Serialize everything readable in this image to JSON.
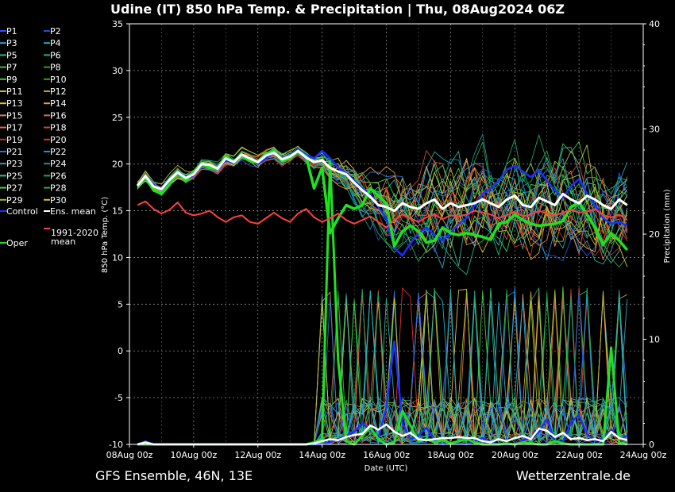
{
  "chart_data": {
    "type": "line",
    "title": "Udine  (IT)  850 hPa Temp. & Precipitation | Thu, 08Aug2024 06Z",
    "xlabel": "Date (UTC)",
    "ylabel": "850 hPa Temp. (°C)",
    "y2label": "Precipitation (mm)",
    "ylim": [
      -10,
      35
    ],
    "y2lim": [
      0,
      40
    ],
    "xlim": [
      0,
      64
    ],
    "yticks": [
      -10,
      -5,
      0,
      5,
      10,
      15,
      20,
      25,
      30,
      35
    ],
    "y2ticks": [
      0,
      10,
      20,
      30,
      40
    ],
    "xticks": [
      {
        "label": "08Aug 00z",
        "pos": 0
      },
      {
        "label": "10Aug 00z",
        "pos": 8
      },
      {
        "label": "12Aug 00z",
        "pos": 16
      },
      {
        "label": "14Aug 00z",
        "pos": 24
      },
      {
        "label": "16Aug 00z",
        "pos": 32
      },
      {
        "label": "18Aug 00z",
        "pos": 40
      },
      {
        "label": "20Aug 00z",
        "pos": 48
      },
      {
        "label": "22Aug 00z",
        "pos": 56
      },
      {
        "label": "24Aug 00z",
        "pos": 64
      }
    ],
    "grid": true,
    "x_start": 1,
    "x_step": 1,
    "members_color": [
      "#3050ff",
      "#2050d0",
      "#2ea8c8",
      "#20b0b0",
      "#30b090",
      "#20b070",
      "#40c040",
      "#30a030",
      "#b0c040",
      "#c0a030",
      "#e0c040",
      "#e0a030",
      "#d08060",
      "#d07040",
      "#e07050",
      "#c05030",
      "#c03030",
      "#e03030",
      "#3070d0",
      "#2090e0",
      "#30a0b0",
      "#2090a0",
      "#30c080",
      "#20a060",
      "#40d040",
      "#20b040",
      "#a0c030",
      "#d0c030"
    ],
    "series": [
      {
        "name": "Control",
        "color": "#1a30ff",
        "width": 2.5,
        "values": [
          17.6,
          18.6,
          17.8,
          17.2,
          18.2,
          19.1,
          18.4,
          18.8,
          19.9,
          19.8,
          19.4,
          20.4,
          20.1,
          20.9,
          20.5,
          20.0,
          20.6,
          21.2,
          20.4,
          20.8,
          21.6,
          21.0,
          20.6,
          21.4,
          20.6,
          19.6,
          19.0,
          18.2,
          17.4,
          16.8,
          15.4,
          14.2,
          11.0,
          10.2,
          11.5,
          12.6,
          13.2,
          12.4,
          11.8,
          12.6,
          13.6,
          14.2,
          15.6,
          16.8,
          17.4,
          18.2,
          19.4,
          19.8,
          19.2,
          18.6,
          19.4,
          18.2,
          17.2,
          16.4,
          17.6,
          18.4,
          16.8,
          15.6,
          14.2,
          13.6,
          13.8,
          13.4
        ]
      },
      {
        "name": "Oper",
        "color": "#20e020",
        "width": 3.5,
        "values": [
          17.6,
          18.6,
          17.2,
          16.8,
          17.8,
          19.2,
          18.2,
          19.2,
          20.0,
          19.6,
          19.5,
          20.8,
          20.2,
          21.0,
          20.4,
          20.2,
          21.1,
          21.4,
          20.3,
          20.6,
          21.4,
          20.8,
          17.4,
          19.6,
          12.6,
          14.2,
          15.6,
          15.2,
          15.6,
          17.4,
          16.6,
          15.8,
          11.2,
          12.8,
          13.4,
          12.8,
          11.6,
          11.8,
          13.2,
          12.6,
          12.4,
          12.6,
          12.4,
          12.2,
          11.9,
          13.6,
          13.8,
          14.6,
          14.0,
          13.6,
          13.4,
          13.5,
          13.6,
          13.9,
          15.4,
          15.9,
          14.6,
          13.2,
          11.4,
          12.6,
          11.8,
          10.8
        ]
      },
      {
        "name": "Ens. mean",
        "color": "#ffffff",
        "width": 3,
        "values": [
          17.7,
          18.7,
          17.6,
          17.3,
          18.3,
          19.1,
          18.5,
          18.9,
          20.0,
          19.9,
          19.5,
          20.6,
          20.2,
          21.0,
          20.6,
          20.2,
          20.9,
          21.2,
          20.5,
          20.8,
          21.4,
          20.7,
          20.2,
          20.4,
          19.6,
          19.2,
          18.9,
          18.0,
          17.2,
          16.5,
          15.6,
          15.4,
          15.0,
          15.8,
          15.4,
          15.2,
          15.8,
          16.2,
          15.2,
          15.8,
          15.4,
          15.6,
          15.8,
          16.2,
          15.8,
          15.4,
          16.2,
          16.6,
          15.6,
          15.4,
          16.4,
          16.0,
          15.6,
          16.8,
          16.2,
          15.8,
          16.6,
          16.2,
          15.6,
          15.2,
          16.2,
          15.6
        ]
      },
      {
        "name": "1991-2020 mean",
        "color": "#ff4040",
        "width": 2,
        "values": [
          15.6,
          16.0,
          15.2,
          14.7,
          15.1,
          15.9,
          14.8,
          14.5,
          14.7,
          15.0,
          14.3,
          13.8,
          14.3,
          14.5,
          13.8,
          13.6,
          14.2,
          14.8,
          14.2,
          13.8,
          14.7,
          15.2,
          14.3,
          13.8,
          14.2,
          14.7,
          14.0,
          13.6,
          14.0,
          14.4,
          13.8,
          13.2,
          14.0,
          14.6,
          14.2,
          13.8,
          14.3,
          14.6,
          14.1,
          14.5,
          14.4,
          14.6,
          15.0,
          14.8,
          14.6,
          14.2,
          14.5,
          14.9,
          14.4,
          14.6,
          15.0,
          14.7,
          14.5,
          14.8,
          15.1,
          14.8,
          14.9,
          15.2,
          14.5,
          14.3,
          14.6,
          14.0
        ]
      }
    ],
    "precip": [
      {
        "name": "Control",
        "color": "#1a30ff",
        "width": 2.5,
        "values": [
          0,
          0.3,
          0,
          0,
          0,
          0,
          0,
          0,
          0,
          0,
          0,
          0,
          0,
          0,
          0,
          0,
          0,
          0,
          0,
          0,
          0,
          0,
          0,
          0,
          0.2,
          0.5,
          0.8,
          1.2,
          2.0,
          1.4,
          0.6,
          3.5,
          9.8,
          2.0,
          0.5,
          0.8,
          1.6,
          0.4,
          0,
          0.2,
          0.1,
          0,
          0.3,
          0.6,
          0.2,
          0,
          0,
          0,
          0.4,
          0.6,
          1.2,
          2.4,
          0.3,
          0.2,
          2.1,
          2.8,
          1.0,
          0.3,
          0.6,
          1.4,
          0.5,
          0.8
        ]
      },
      {
        "name": "Oper",
        "color": "#20e020",
        "width": 3,
        "values": [
          0,
          0,
          0,
          0,
          0,
          0,
          0,
          0,
          0,
          0,
          0,
          0,
          0,
          0,
          0,
          0,
          0,
          0,
          0,
          0,
          0,
          0,
          0.2,
          0.5,
          27.0,
          8.0,
          0.3,
          0,
          0.8,
          1.6,
          0.5,
          0,
          0.2,
          3.2,
          1.8,
          0.3,
          0.5,
          0.2,
          0.4,
          0.1,
          0.3,
          0.5,
          0.2,
          0,
          0,
          0,
          0.1,
          0,
          0.2,
          0.1,
          0,
          0,
          0.3,
          0.1,
          0,
          0,
          0,
          0,
          0,
          9.2,
          0.2,
          0
        ]
      },
      {
        "name": "Ens. mean",
        "color": "#ffffff",
        "width": 2.5,
        "values": [
          0,
          0.2,
          0,
          0,
          0,
          0,
          0,
          0,
          0,
          0,
          0,
          0,
          0,
          0,
          0,
          0,
          0,
          0,
          0,
          0,
          0,
          0,
          0.1,
          0.3,
          0.5,
          0.4,
          0.7,
          0.9,
          1.0,
          1.8,
          1.4,
          1.9,
          1.2,
          0.8,
          1.1,
          0.5,
          0.4,
          0.5,
          0.6,
          0.6,
          0.7,
          0.6,
          0.6,
          0.3,
          0.2,
          0.5,
          0.3,
          0.6,
          0.8,
          0.5,
          1.5,
          1.3,
          0.7,
          1.1,
          0.5,
          0.6,
          0.4,
          0.5,
          0.3,
          1.2,
          0.6,
          0.4
        ]
      }
    ],
    "legend": {
      "position": "left",
      "members": [
        "P1",
        "P2",
        "P3",
        "P4",
        "P5",
        "P6",
        "P7",
        "P8",
        "P9",
        "P10",
        "P11",
        "P12",
        "P13",
        "P14",
        "P15",
        "P16",
        "P17",
        "P18",
        "P19",
        "P20",
        "P21",
        "P22",
        "P23",
        "P24",
        "P25",
        "P26",
        "P27",
        "P28",
        "P29",
        "P30"
      ],
      "control": "Control",
      "ens_mean": "Ens. mean",
      "clim": [
        "1991-2020",
        "mean"
      ],
      "oper": "Oper"
    },
    "footer_left": "GFS Ensemble, 46N, 13E",
    "footer_right": "Wetterzentrale.de"
  }
}
